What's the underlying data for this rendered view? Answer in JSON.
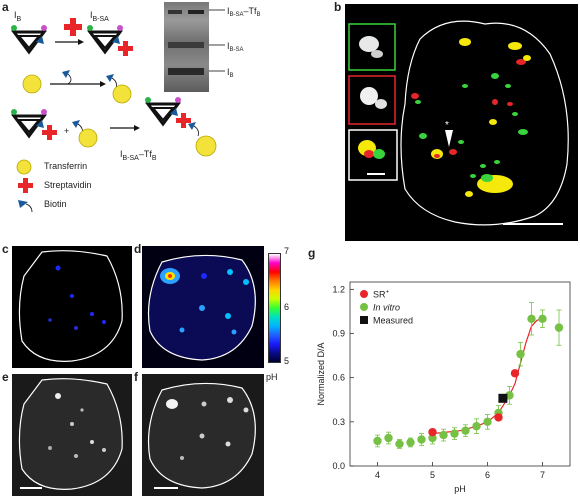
{
  "panels": {
    "a": {
      "letter": "a",
      "ib_label": "I",
      "ib_sub": "B",
      "ibsa_label": "I",
      "ibsa_sub": "B-SA",
      "product_label": "I",
      "product_sub": "B-SA",
      "product_tail": "–Tf",
      "product_tail_sub": "B",
      "gel_labels": [
        {
          "text": "I",
          "sub": "B-SA",
          "tail": "–Tf",
          "tail_sub": "B"
        },
        {
          "text": "I",
          "sub": "B-SA",
          "tail": "",
          "tail_sub": ""
        },
        {
          "text": "I",
          "sub": "B",
          "tail": "",
          "tail_sub": ""
        }
      ],
      "legend": [
        {
          "name": "Transferrin",
          "icon": "yellow-circle-icon"
        },
        {
          "name": "Streptavidin",
          "icon": "red-cross-icon"
        },
        {
          "name": "Biotin",
          "icon": "blue-flag-icon"
        }
      ]
    },
    "b": {
      "letter": "b",
      "asterisk": "*"
    },
    "c": {
      "letter": "c"
    },
    "d": {
      "letter": "d"
    },
    "e": {
      "letter": "e"
    },
    "f": {
      "letter": "f"
    },
    "g": {
      "letter": "g"
    },
    "colorbar": {
      "ticks": [
        "7",
        "6",
        "5"
      ],
      "unit": "pH",
      "colors": [
        "#ffffff",
        "#ff00cc",
        "#ff0000",
        "#ff7a00",
        "#ffd400",
        "#c8ff00",
        "#33ff33",
        "#00e0c0",
        "#00b4ff",
        "#2060ff",
        "#1a1aff",
        "#0a0a8a",
        "#000030"
      ]
    }
  },
  "chart_data": {
    "type": "scatter",
    "xlabel": "pH",
    "ylabel": "Normalized D/A",
    "xlim": [
      3.5,
      7.5
    ],
    "ylim": [
      0.0,
      1.25
    ],
    "xticks": [
      "4",
      "5",
      "6",
      "7"
    ],
    "yticks": [
      "0.0",
      "0.3",
      "0.6",
      "0.9",
      "1.2"
    ],
    "legend_position": "top-left",
    "series": [
      {
        "name": "SR",
        "name_sup": "+",
        "color": "#e8262a",
        "marker": "circle",
        "x": [
          5.0,
          6.2,
          6.5
        ],
        "y": [
          0.23,
          0.33,
          0.63
        ]
      },
      {
        "name": "In vitro",
        "italic": true,
        "color": "#76c043",
        "marker": "circle",
        "x": [
          4.0,
          4.2,
          4.4,
          4.6,
          4.8,
          5.0,
          5.2,
          5.4,
          5.6,
          5.8,
          6.0,
          6.2,
          6.4,
          6.6,
          6.8,
          7.0,
          7.3
        ],
        "y": [
          0.17,
          0.19,
          0.15,
          0.16,
          0.18,
          0.19,
          0.21,
          0.22,
          0.24,
          0.27,
          0.3,
          0.36,
          0.48,
          0.76,
          1.0,
          1.0,
          0.94
        ],
        "err": [
          0.04,
          0.04,
          0.03,
          0.03,
          0.04,
          0.04,
          0.04,
          0.04,
          0.04,
          0.05,
          0.05,
          0.05,
          0.06,
          0.08,
          0.11,
          0.06,
          0.12
        ]
      },
      {
        "name": "Measured",
        "color": "#111111",
        "marker": "square",
        "x": [
          6.28
        ],
        "y": [
          0.46
        ]
      }
    ],
    "fit_line": {
      "color": "#e8262a",
      "x": [
        5.0,
        5.5,
        5.8,
        6.0,
        6.2,
        6.4,
        6.5,
        6.6,
        6.7,
        6.8,
        6.9,
        7.0
      ],
      "y": [
        0.22,
        0.24,
        0.27,
        0.3,
        0.36,
        0.48,
        0.56,
        0.7,
        0.84,
        0.95,
        0.99,
        1.0
      ]
    }
  }
}
